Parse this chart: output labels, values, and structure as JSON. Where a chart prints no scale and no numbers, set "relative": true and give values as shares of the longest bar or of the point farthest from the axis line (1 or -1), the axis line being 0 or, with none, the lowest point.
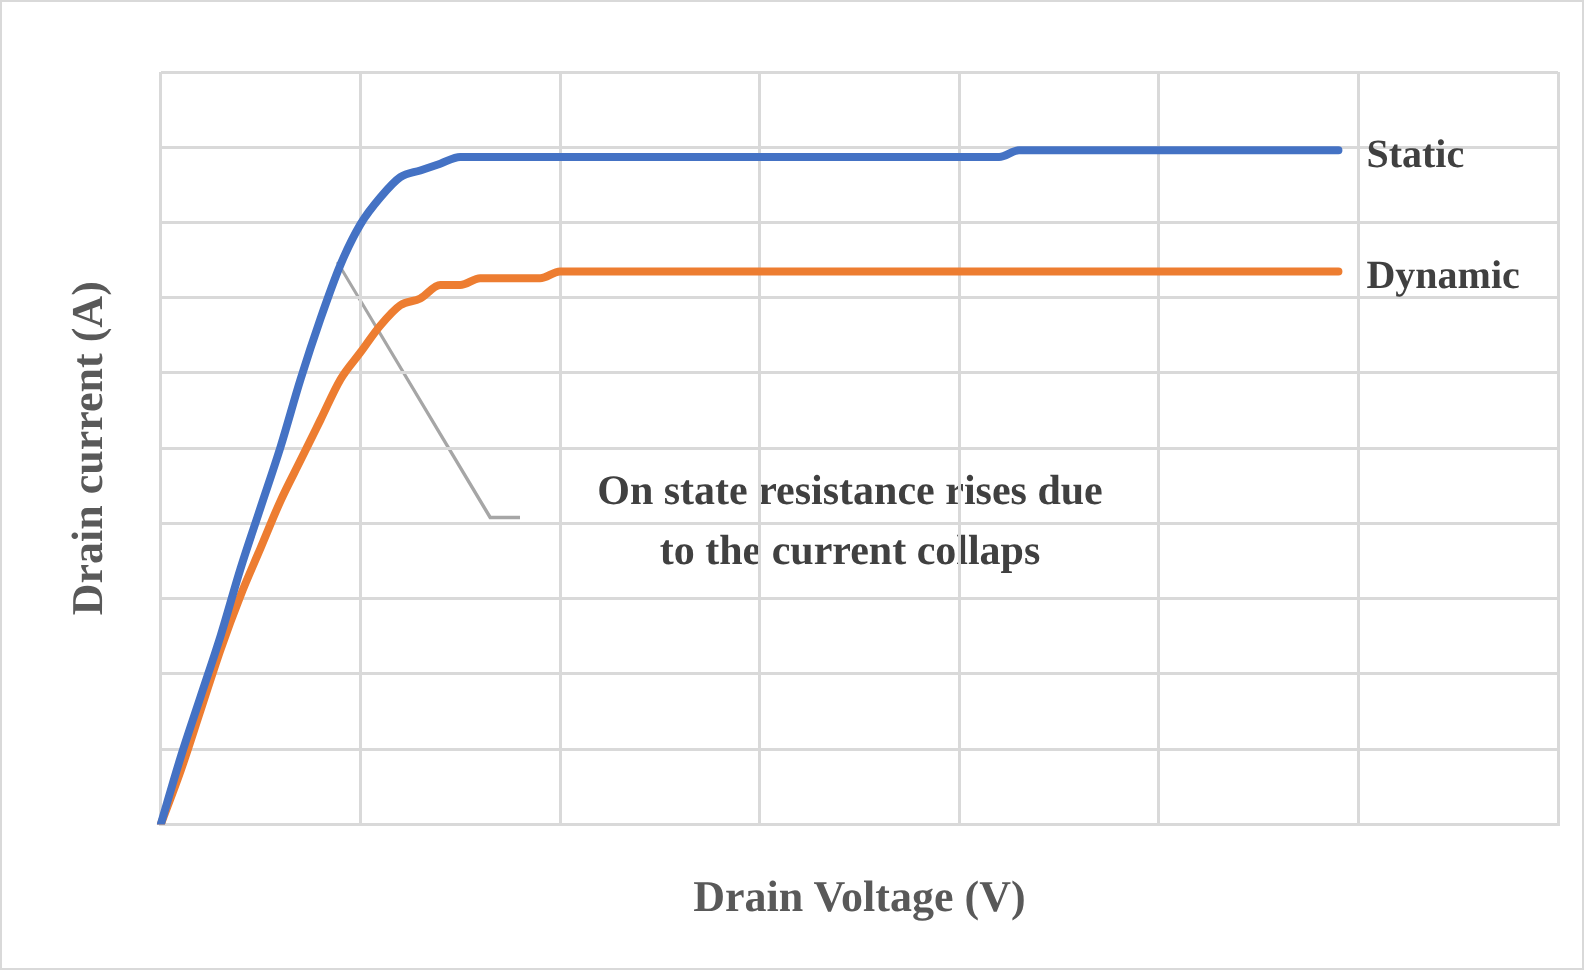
{
  "chart_data": {
    "type": "line",
    "relative": true,
    "xlabel": "Drain Voltage (V)",
    "ylabel": "Drain current (A)",
    "grid": true,
    "legend": false,
    "marker": "none",
    "line_style": "solid",
    "categories": [
      null,
      null,
      null,
      null,
      null,
      null,
      null,
      null,
      null,
      null,
      null,
      null,
      null,
      null,
      null,
      null,
      null,
      null,
      null,
      null,
      null,
      null,
      null,
      null,
      null,
      null,
      null,
      null,
      null,
      null,
      null,
      null,
      null,
      null,
      null,
      null,
      null,
      null,
      null,
      null,
      null,
      null,
      null,
      null,
      null,
      null,
      null,
      null,
      null,
      null,
      null,
      null,
      null,
      null,
      null,
      null,
      null,
      null,
      null,
      null,
      null,
      null,
      null,
      null,
      null,
      null,
      null,
      null,
      null,
      null,
      null
    ],
    "series": [
      {
        "name": "Static",
        "color": "#4472c4",
        "values": [
          0,
          0.1,
          0.19,
          0.28,
          0.38,
          0.47,
          0.56,
          0.66,
          0.75,
          0.83,
          0.89,
          0.93,
          0.96,
          0.97,
          0.98,
          0.99,
          0.99,
          0.99,
          0.99,
          0.99,
          0.99,
          0.99,
          0.99,
          0.99,
          0.99,
          0.99,
          0.99,
          0.99,
          0.99,
          0.99,
          0.99,
          0.99,
          0.99,
          0.99,
          0.99,
          0.99,
          0.99,
          0.99,
          0.99,
          0.99,
          0.99,
          0.99,
          0.99,
          1,
          1,
          1,
          1,
          1,
          1,
          1,
          1,
          1,
          1,
          1,
          1,
          1,
          1,
          1,
          1,
          1,
          null,
          null,
          null,
          null,
          null,
          null,
          null,
          null,
          null,
          null,
          null
        ]
      },
      {
        "name": "Dynamic",
        "color": "#ed7d31",
        "values": [
          0,
          0.08,
          0.17,
          0.26,
          0.34,
          0.41,
          0.48,
          0.54,
          0.6,
          0.66,
          0.7,
          0.74,
          0.77,
          0.78,
          0.8,
          0.8,
          0.81,
          0.81,
          0.81,
          0.81,
          0.82,
          0.82,
          0.82,
          0.82,
          0.82,
          0.82,
          0.82,
          0.82,
          0.82,
          0.82,
          0.82,
          0.82,
          0.82,
          0.82,
          0.82,
          0.82,
          0.82,
          0.82,
          0.82,
          0.82,
          0.82,
          0.82,
          0.82,
          0.82,
          0.82,
          0.82,
          0.82,
          0.82,
          0.82,
          0.82,
          0.82,
          0.82,
          0.82,
          0.82,
          0.82,
          0.82,
          0.82,
          0.82,
          0.82,
          0.82,
          null,
          null,
          null,
          null,
          null,
          null,
          null,
          null,
          null,
          null,
          null
        ]
      }
    ],
    "annotations": [
      "On state resistance rises due\nto the current collaps"
    ]
  }
}
